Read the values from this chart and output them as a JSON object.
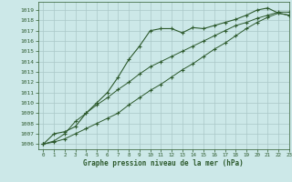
{
  "title": "Graphe pression niveau de la mer (hPa)",
  "bg_color": "#cce8e8",
  "grid_color": "#aac8c8",
  "line_color": "#2d5a2d",
  "xlim": [
    -0.5,
    23
  ],
  "ylim": [
    1005.5,
    1019.8
  ],
  "xticks": [
    0,
    1,
    2,
    3,
    4,
    5,
    6,
    7,
    8,
    9,
    10,
    11,
    12,
    13,
    14,
    15,
    16,
    17,
    18,
    19,
    20,
    21,
    22,
    23
  ],
  "yticks": [
    1006,
    1007,
    1008,
    1009,
    1010,
    1011,
    1012,
    1013,
    1014,
    1015,
    1016,
    1017,
    1018,
    1019
  ],
  "series": [
    {
      "x": [
        0,
        1,
        2,
        3,
        4,
        5,
        6,
        7,
        8,
        9,
        10,
        11,
        12,
        13,
        14,
        15,
        16,
        17,
        18,
        19,
        20,
        21,
        22,
        23
      ],
      "y": [
        1006.0,
        1007.0,
        1007.2,
        1007.7,
        1009.0,
        1010.0,
        1011.0,
        1012.5,
        1014.2,
        1015.5,
        1017.0,
        1017.2,
        1017.2,
        1016.8,
        1017.3,
        1017.2,
        1017.5,
        1017.8,
        1018.1,
        1018.5,
        1019.0,
        1019.2,
        1018.7,
        1018.5
      ],
      "marker": "+",
      "markersize": 3.5,
      "linewidth": 0.8
    },
    {
      "x": [
        0,
        1,
        2,
        3,
        4,
        5,
        6,
        7,
        8,
        9,
        10,
        11,
        12,
        13,
        14,
        15,
        16,
        17,
        18,
        19,
        20,
        21,
        22,
        23
      ],
      "y": [
        1006.0,
        1006.3,
        1007.0,
        1008.2,
        1009.0,
        1009.8,
        1010.5,
        1011.3,
        1012.0,
        1012.8,
        1013.5,
        1014.0,
        1014.5,
        1015.0,
        1015.5,
        1016.0,
        1016.5,
        1017.0,
        1017.5,
        1017.8,
        1018.2,
        1018.5,
        1018.8,
        1018.8
      ],
      "marker": "+",
      "markersize": 3,
      "linewidth": 0.7
    },
    {
      "x": [
        0,
        1,
        2,
        3,
        4,
        5,
        6,
        7,
        8,
        9,
        10,
        11,
        12,
        13,
        14,
        15,
        16,
        17,
        18,
        19,
        20,
        21,
        22,
        23
      ],
      "y": [
        1006.0,
        1006.2,
        1006.5,
        1007.0,
        1007.5,
        1008.0,
        1008.5,
        1009.0,
        1009.8,
        1010.5,
        1011.2,
        1011.8,
        1012.5,
        1013.2,
        1013.8,
        1014.5,
        1015.2,
        1015.8,
        1016.5,
        1017.2,
        1017.8,
        1018.3,
        1018.7,
        1018.5
      ],
      "marker": "+",
      "markersize": 3,
      "linewidth": 0.7
    }
  ]
}
